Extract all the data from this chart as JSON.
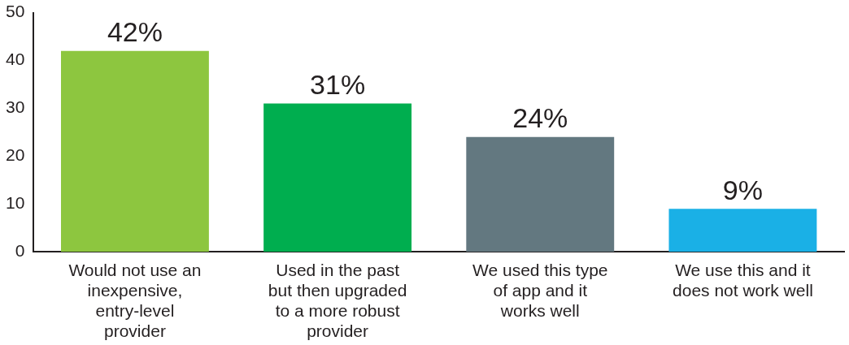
{
  "chart_data": {
    "type": "bar",
    "categories": [
      "Would not use an inexpensive, entry-level provider",
      "Used in the past but then upgraded to a more robust provider",
      "We used this type of app and it works well",
      "We use this and it does not work well"
    ],
    "values": [
      42,
      31,
      24,
      9
    ],
    "colors": [
      "#8dc63f",
      "#00ae4f",
      "#637880",
      "#1ab0e6"
    ],
    "value_labels": [
      "42%",
      "31%",
      "24%",
      "9%"
    ],
    "ylim": [
      0,
      50
    ],
    "yticks": [
      0,
      10,
      20,
      30,
      40,
      50
    ]
  }
}
